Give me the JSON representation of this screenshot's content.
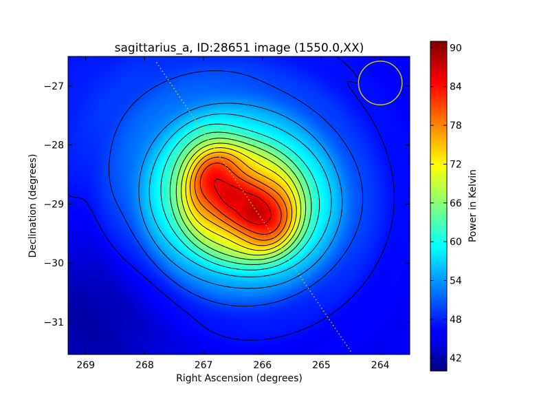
{
  "chart_data": {
    "type": "heatmap",
    "title": "sagittarius_a, ID:28651 image (1550.0,XX)",
    "xlabel": "Right Ascension (degrees)",
    "ylabel": "Declination (degrees)",
    "xlim": [
      269.3,
      263.5
    ],
    "ylim": [
      -31.55,
      -26.5
    ],
    "x_ticks": [
      269,
      268,
      267,
      266,
      265,
      264
    ],
    "x_tick_labels": [
      "269",
      "268",
      "267",
      "266",
      "265",
      "264"
    ],
    "y_ticks": [
      -27,
      -28,
      -29,
      -30,
      -31
    ],
    "y_tick_labels": [
      "−27",
      "−28",
      "−29",
      "−30",
      "−31"
    ],
    "colorbar": {
      "label": "Power in Kelvin",
      "range": [
        40,
        91
      ],
      "ticks": [
        42,
        48,
        54,
        60,
        66,
        72,
        78,
        84,
        90
      ],
      "tick_labels": [
        "42",
        "48",
        "54",
        "60",
        "66",
        "72",
        "78",
        "84",
        "90"
      ],
      "colormap": "jet"
    },
    "background_level": 46,
    "blobs": [
      {
        "ra": 266.35,
        "dec": -29.0,
        "sigma_ra": 1.0,
        "sigma_dec": 0.85,
        "amp": 32
      },
      {
        "ra": 266.85,
        "dec": -28.5,
        "sigma_ra": 0.35,
        "sigma_dec": 0.45,
        "amp": 12
      },
      {
        "ra": 265.9,
        "dec": -29.3,
        "sigma_ra": 0.35,
        "sigma_dec": 0.4,
        "amp": 12
      },
      {
        "ra": 267.3,
        "dec": -27.5,
        "sigma_ra": 1.6,
        "sigma_dec": 1.0,
        "amp": 4
      }
    ],
    "contour_levels": [
      47,
      50,
      54,
      57,
      60,
      63,
      66,
      69,
      72,
      75,
      78,
      81,
      85,
      88
    ],
    "overlays": {
      "beam_circle": {
        "ra": 264.0,
        "dec": -26.95,
        "radius_deg": 0.37,
        "color": "#d4d400"
      },
      "galactic_plane": {
        "from": [
          267.8,
          -26.6
        ],
        "to": [
          264.5,
          -31.5
        ],
        "color": "#d4d400",
        "style": "dotted"
      }
    }
  }
}
